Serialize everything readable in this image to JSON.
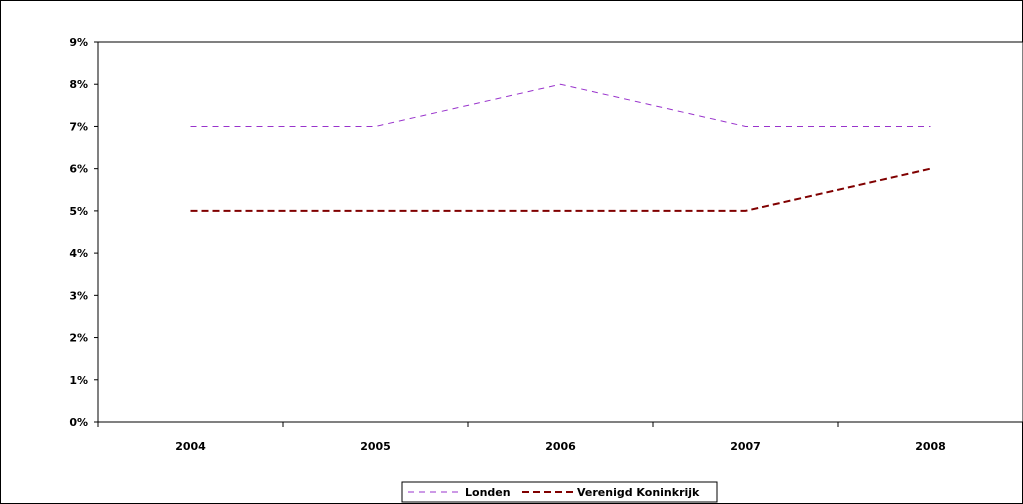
{
  "chart_data": {
    "type": "line",
    "title": "",
    "xlabel": "",
    "ylabel": "",
    "categories": [
      "2004",
      "2005",
      "2006",
      "2007",
      "2008"
    ],
    "yticks": [
      "0%",
      "1%",
      "2%",
      "3%",
      "4%",
      "5%",
      "6%",
      "7%",
      "8%",
      "9%"
    ],
    "ylim": [
      0,
      9
    ],
    "grid": {
      "horizontal": false,
      "vertical": false
    },
    "legend": {
      "position": "bottom"
    },
    "series": [
      {
        "name": "Londen",
        "values": [
          7,
          7,
          8,
          7,
          7
        ],
        "color": "#9933cc",
        "style": "dashed-thin"
      },
      {
        "name": "Verenigd Koninkrijk",
        "values": [
          5,
          5,
          5,
          5,
          6
        ],
        "color": "#800000",
        "style": "dashed-thick"
      }
    ]
  }
}
